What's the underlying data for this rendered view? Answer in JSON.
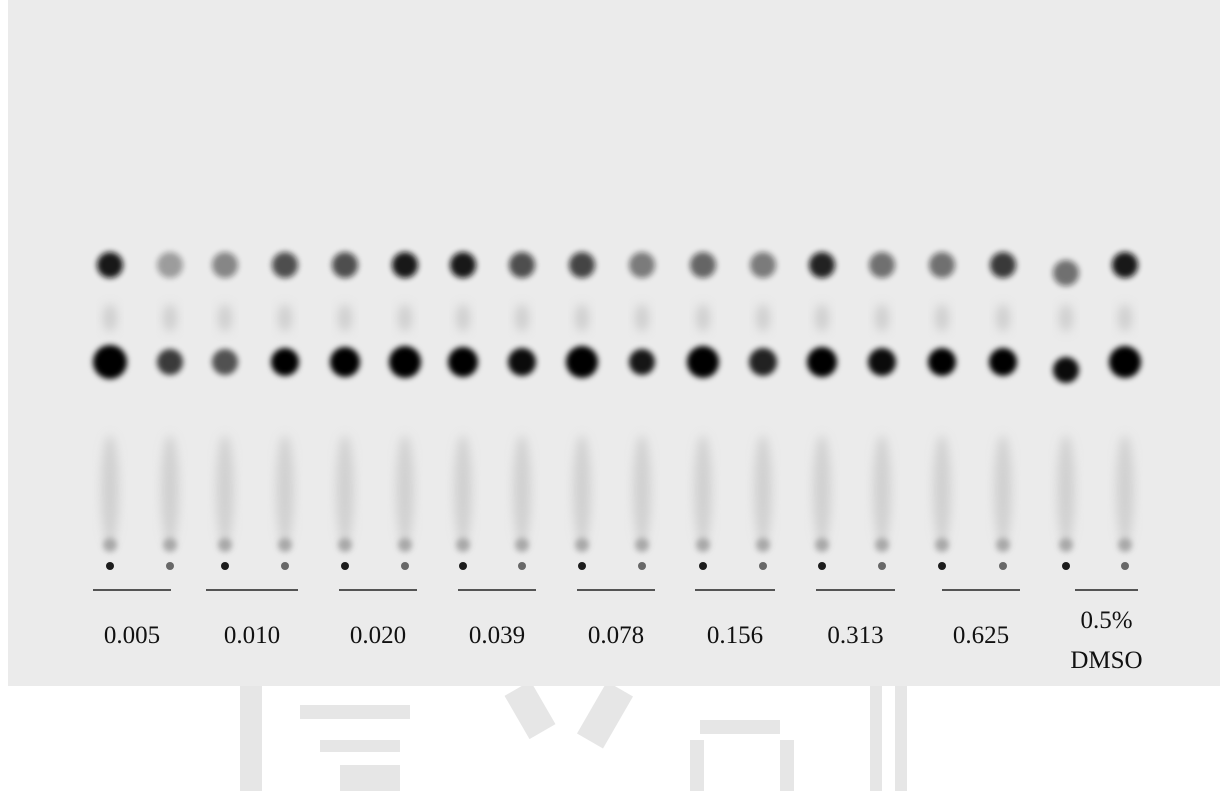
{
  "groups": [
    {
      "label": "0.005"
    },
    {
      "label": "0.010"
    },
    {
      "label": "0.020"
    },
    {
      "label": "0.039"
    },
    {
      "label": "0.078"
    },
    {
      "label": "0.156"
    },
    {
      "label": "0.313"
    },
    {
      "label": "0.625"
    },
    {
      "label_lines": [
        "0.5%",
        "DMSO"
      ]
    }
  ]
}
